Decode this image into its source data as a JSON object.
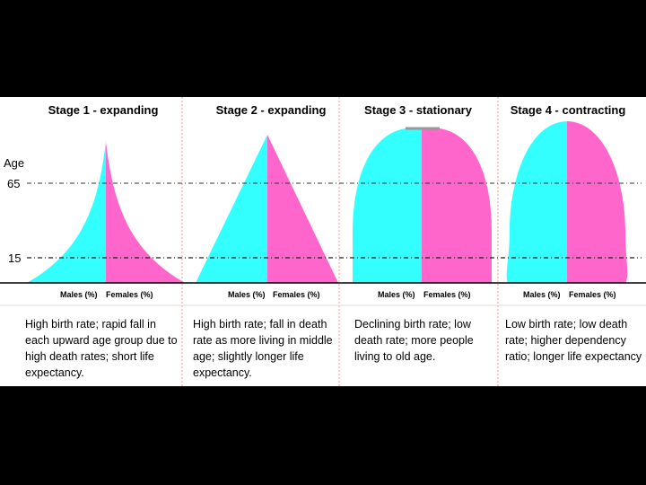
{
  "axis": {
    "age_label": "Age",
    "ticks": [
      "65",
      "15"
    ]
  },
  "stages": [
    {
      "title": "Stage 1 - expanding",
      "males_label": "Males (%)",
      "females_label": "Females (%)",
      "description": "High birth rate; rapid fall in each upward age group due to high death rates; short life expectancy."
    },
    {
      "title": "Stage 2 - expanding",
      "males_label": "Males (%)",
      "females_label": "Females (%)",
      "description": "High birth rate; fall in death rate as more living in middle age; slightly longer life expectancy."
    },
    {
      "title": "Stage 3 - stationary",
      "males_label": "Males (%)",
      "females_label": "Females (%)",
      "description": "Declining birth rate; low death rate; more people living to old age."
    },
    {
      "title": "Stage 4 - contracting",
      "males_label": "Males (%)",
      "females_label": "Females (%)",
      "description": "Low birth rate; low death rate; higher dependency ratio; longer life expectancy"
    }
  ],
  "colors": {
    "males": "#33ffff",
    "females": "#ff66cc",
    "background": "#ffffff",
    "divider": "#ff9999"
  }
}
